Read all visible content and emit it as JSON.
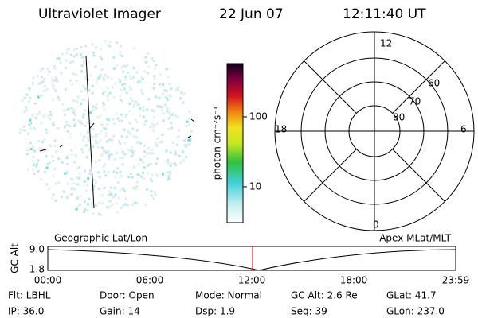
{
  "header": {
    "instrument": "Ultraviolet Imager",
    "date": "22 Jun 07",
    "time": "12:11:40 UT"
  },
  "colorbar": {
    "label": "photon cm⁻²s⁻¹",
    "ticks": [
      "100",
      "10"
    ]
  },
  "polar": {
    "mlt_labels": [
      "12",
      "18",
      "6",
      "0"
    ],
    "lat_labels": [
      "60",
      "70",
      "80"
    ]
  },
  "orbit": {
    "left_label": "Geographic Lat/Lon",
    "right_label": "Apex MLat/MLT",
    "y_label": "GC Alt",
    "y_ticks": [
      "9.0",
      "1.8"
    ],
    "x_ticks": [
      "00:00",
      "06:00",
      "12:00",
      "18:00",
      "23:59"
    ]
  },
  "footer": {
    "rows": [
      [
        "Flt: LBHL",
        "Door: Open",
        "Mode: Normal",
        "GC Alt: 2.6 Re",
        "GLat:  41.7"
      ],
      [
        "IP: 36.0",
        "Gain: 14",
        "Dsp:    1.9",
        "Seq: 39",
        "GLon: 237.0"
      ]
    ]
  }
}
